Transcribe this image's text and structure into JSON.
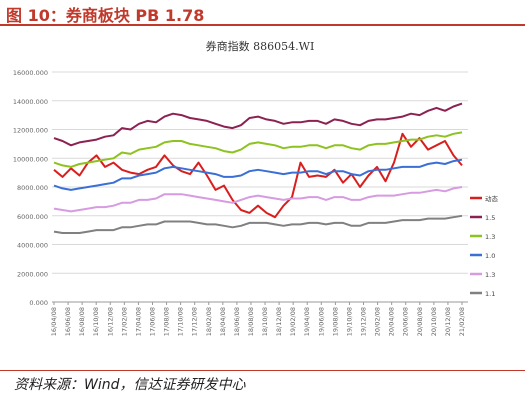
{
  "figure": {
    "title": "图 10：券商板块 PB 1.78",
    "source": "资料来源：Wind，信达证券研发中心"
  },
  "chart_data": {
    "type": "line",
    "title": "券商指数 886054.WI",
    "xlabel": "",
    "ylabel": "",
    "ylim": [
      0,
      16000
    ],
    "yticks": [
      "0.000",
      "2000.000",
      "4000.000",
      "6000.000",
      "8000.000",
      "10000.000",
      "12000.000",
      "14000.000",
      "16000.000"
    ],
    "x_ticks": [
      "16/04/08",
      "16/06/08",
      "16/08/08",
      "16/10/08",
      "16/12/08",
      "17/02/08",
      "17/04/08",
      "17/06/08",
      "17/08/08",
      "17/10/08",
      "17/12/08",
      "18/02/08",
      "18/04/08",
      "18/06/08",
      "18/08/08",
      "18/10/08",
      "18/12/08",
      "19/02/08",
      "19/04/08",
      "19/06/08",
      "19/08/08",
      "19/10/08",
      "19/12/08",
      "20/02/08",
      "20/04/08",
      "20/06/08",
      "20/08/08",
      "20/10/08",
      "20/12/08",
      "21/02/08"
    ],
    "grid": true,
    "legend": "right",
    "series": [
      {
        "name": "动态",
        "color": "#d91e1e",
        "values": [
          9200,
          8700,
          9300,
          8800,
          9700,
          10200,
          9400,
          9700,
          9200,
          9000,
          8900,
          9200,
          9400,
          10200,
          9500,
          9100,
          8900,
          9700,
          8800,
          7800,
          8100,
          7100,
          6400,
          6200,
          6700,
          6200,
          5900,
          6700,
          7300,
          9700,
          8700,
          8800,
          8700,
          9200,
          8300,
          8900,
          8000,
          8800,
          9400,
          8400,
          9700,
          11700,
          10800,
          11400,
          10600,
          10900,
          11200,
          10200,
          9500
        ]
      },
      {
        "name": "1.5",
        "color": "#8b2252",
        "values": [
          11400,
          11200,
          10900,
          11100,
          11200,
          11300,
          11500,
          11600,
          12100,
          12000,
          12400,
          12600,
          12500,
          12900,
          13100,
          13000,
          12800,
          12700,
          12600,
          12400,
          12200,
          12100,
          12300,
          12800,
          12900,
          12700,
          12600,
          12400,
          12500,
          12500,
          12600,
          12600,
          12400,
          12700,
          12600,
          12400,
          12300,
          12600,
          12700,
          12700,
          12800,
          12900,
          13100,
          13000,
          13300,
          13500,
          13300,
          13600,
          13800
        ]
      },
      {
        "name": "1.3",
        "color": "#8dc21f",
        "values": [
          9700,
          9500,
          9400,
          9600,
          9700,
          9800,
          9900,
          10000,
          10400,
          10300,
          10600,
          10700,
          10800,
          11100,
          11200,
          11200,
          11000,
          10900,
          10800,
          10700,
          10500,
          10400,
          10600,
          11000,
          11100,
          11000,
          10900,
          10700,
          10800,
          10800,
          10900,
          10900,
          10700,
          10900,
          10900,
          10700,
          10600,
          10900,
          11000,
          11000,
          11100,
          11200,
          11300,
          11300,
          11500,
          11600,
          11500,
          11700,
          11800
        ]
      },
      {
        "name": "1.0",
        "color": "#3b6fd6",
        "values": [
          8100,
          7900,
          7800,
          7900,
          8000,
          8100,
          8200,
          8300,
          8600,
          8600,
          8800,
          8900,
          9000,
          9300,
          9400,
          9300,
          9200,
          9100,
          9000,
          8900,
          8700,
          8700,
          8800,
          9100,
          9200,
          9100,
          9000,
          8900,
          9000,
          9000,
          9100,
          9100,
          8900,
          9100,
          9100,
          8900,
          8800,
          9100,
          9200,
          9200,
          9300,
          9400,
          9400,
          9400,
          9600,
          9700,
          9600,
          9800,
          9900
        ]
      },
      {
        "name": "1.3",
        "color": "#d69be0",
        "values": [
          6500,
          6400,
          6300,
          6400,
          6500,
          6600,
          6600,
          6700,
          6900,
          6900,
          7100,
          7100,
          7200,
          7500,
          7500,
          7500,
          7400,
          7300,
          7200,
          7100,
          7000,
          6900,
          7100,
          7300,
          7400,
          7300,
          7200,
          7100,
          7200,
          7200,
          7300,
          7300,
          7100,
          7300,
          7300,
          7100,
          7100,
          7300,
          7400,
          7400,
          7400,
          7500,
          7600,
          7600,
          7700,
          7800,
          7700,
          7900,
          8000
        ]
      },
      {
        "name": "1.1",
        "color": "#808080",
        "values": [
          4900,
          4800,
          4800,
          4800,
          4900,
          5000,
          5000,
          5000,
          5200,
          5200,
          5300,
          5400,
          5400,
          5600,
          5600,
          5600,
          5600,
          5500,
          5400,
          5400,
          5300,
          5200,
          5300,
          5500,
          5500,
          5500,
          5400,
          5300,
          5400,
          5400,
          5500,
          5500,
          5400,
          5500,
          5500,
          5300,
          5300,
          5500,
          5500,
          5500,
          5600,
          5700,
          5700,
          5700,
          5800,
          5800,
          5800,
          5900,
          6000
        ]
      }
    ]
  }
}
